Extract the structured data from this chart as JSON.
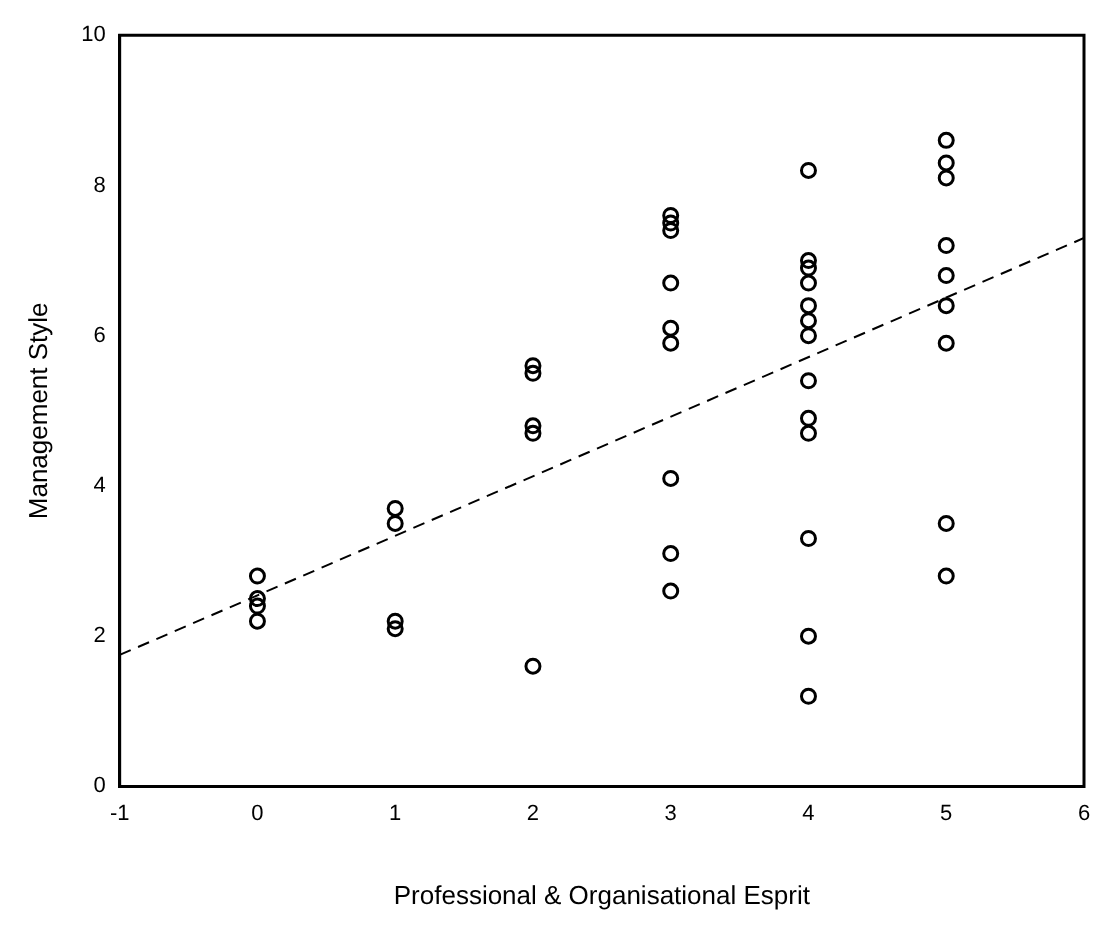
{
  "chart_data": {
    "type": "scatter",
    "xlabel": "Professional & Organisational Esprit",
    "ylabel": "Management Style",
    "xlim": [
      -1,
      6
    ],
    "xticks": [
      -1,
      0,
      1,
      2,
      3,
      4,
      5,
      6
    ],
    "ylim": [
      0,
      10
    ],
    "yticks": [
      0,
      2,
      4,
      6,
      8,
      10
    ],
    "grid": false,
    "legend": false,
    "marker": "circle",
    "series": [
      {
        "color": "#000000",
        "x": [
          0,
          0,
          0,
          0,
          1,
          1,
          1,
          1,
          2,
          2,
          2,
          2,
          2,
          3,
          3,
          3,
          3,
          3,
          3,
          3,
          3,
          3,
          4,
          4,
          4,
          4,
          4,
          4,
          4,
          4,
          4,
          4,
          4,
          4,
          4,
          5,
          5,
          5,
          5,
          5,
          5,
          5,
          5,
          5
        ],
        "values": [
          2.8,
          2.5,
          2.4,
          2.2,
          3.7,
          3.5,
          2.2,
          2.1,
          5.6,
          5.5,
          4.8,
          4.7,
          1.6,
          7.6,
          7.5,
          7.4,
          6.7,
          6.1,
          5.9,
          4.1,
          3.1,
          2.6,
          8.2,
          7.0,
          6.9,
          6.7,
          6.4,
          6.2,
          6.0,
          5.4,
          4.9,
          4.7,
          3.3,
          2.0,
          1.2,
          8.6,
          8.3,
          8.1,
          7.2,
          6.8,
          6.4,
          5.9,
          3.5,
          2.8
        ]
      },
      {
        "type": "line",
        "color": "#000000",
        "line_style": "dashed",
        "marker": "none",
        "x": [
          -1,
          6
        ],
        "values": [
          1.75,
          7.3
        ]
      }
    ]
  }
}
